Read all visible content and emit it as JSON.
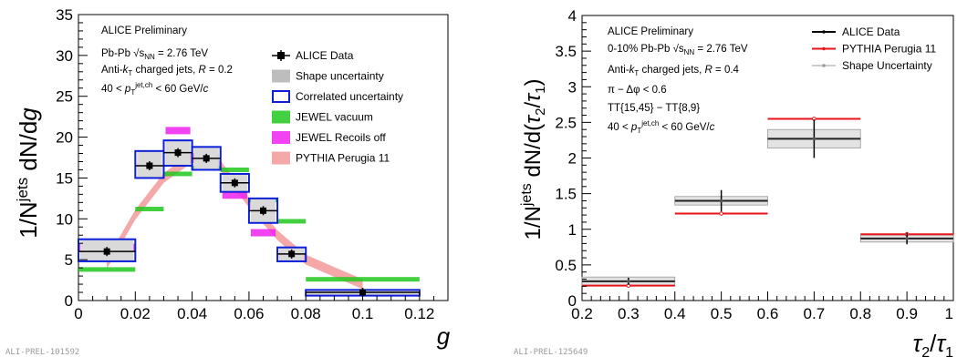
{
  "chart_data": [
    {
      "type": "bar",
      "title": "",
      "xlabel": "g",
      "ylabel": "1/N^jets dN/dg",
      "xlim": [
        0,
        0.13
      ],
      "ylim": [
        0,
        35
      ],
      "xticks": [
        "0",
        "0.02",
        "0.04",
        "0.06",
        "0.08",
        "0.1",
        "0.12"
      ],
      "yticks": [
        "0",
        "5",
        "10",
        "15",
        "20",
        "25",
        "30",
        "35"
      ],
      "annotations": [
        "ALICE Preliminary",
        "Pb-Pb √s_NN = 2.76 TeV",
        "Anti-kT charged jets, R = 0.2",
        "40 < pT^jet,ch < 60 GeV/c"
      ],
      "legend_position": "top-right",
      "legend": [
        "ALICE Data",
        "Shape uncertainty",
        "Correlated uncertainty",
        "JEWEL vacuum",
        "JEWEL Recoils off",
        "PYTHIA Perugia 11"
      ],
      "series": [
        {
          "name": "ALICE Data",
          "bins": [
            [
              0,
              0.02
            ],
            [
              0.02,
              0.03
            ],
            [
              0.03,
              0.04
            ],
            [
              0.04,
              0.05
            ],
            [
              0.05,
              0.06
            ],
            [
              0.06,
              0.07
            ],
            [
              0.07,
              0.08
            ],
            [
              0.08,
              0.12
            ]
          ],
          "x": [
            0.01,
            0.025,
            0.035,
            0.045,
            0.055,
            0.065,
            0.075,
            0.1
          ],
          "y": [
            6.0,
            16.5,
            18.1,
            17.4,
            14.4,
            11.0,
            5.7,
            1.0
          ]
        },
        {
          "name": "Correlated uncertainty",
          "low": [
            4.8,
            15.0,
            16.5,
            16.0,
            13.3,
            9.5,
            4.8,
            0.6
          ],
          "high": [
            7.5,
            18.3,
            19.6,
            18.8,
            15.5,
            12.5,
            6.5,
            1.3
          ]
        },
        {
          "name": "JEWEL vacuum",
          "x": [
            0.01,
            0.025,
            0.035,
            0.045,
            0.055,
            0.065,
            0.075,
            0.1
          ],
          "y": [
            3.8,
            11.2,
            15.5,
            16.2,
            16.0,
            12.3,
            9.7,
            2.6
          ]
        },
        {
          "name": "JEWEL Recoils off",
          "x": [
            0.01,
            0.025,
            0.035,
            0.045,
            0.055,
            0.065,
            0.075
          ],
          "y": [
            6.5,
            16.5,
            20.8,
            17.5,
            12.9,
            8.3,
            5.5
          ]
        },
        {
          "name": "PYTHIA Perugia 11",
          "x": [
            0.01,
            0.02,
            0.03,
            0.04,
            0.05,
            0.06,
            0.07,
            0.08,
            0.1
          ],
          "y": [
            4.5,
            10.5,
            15.0,
            17.5,
            16.5,
            12.0,
            8.0,
            5.0,
            2.0
          ]
        }
      ],
      "tag": "ALI-PREL-101592"
    },
    {
      "type": "bar",
      "title": "",
      "xlabel": "τ2/τ1",
      "ylabel": "1/N^jets dN/d(τ2/τ1)",
      "xlim": [
        0.2,
        1.0
      ],
      "ylim": [
        0,
        4
      ],
      "xticks": [
        "0.2",
        "0.3",
        "0.4",
        "0.5",
        "0.6",
        "0.7",
        "0.8",
        "0.9",
        "1"
      ],
      "yticks": [
        "0",
        "0.5",
        "1",
        "1.5",
        "2",
        "2.5",
        "3",
        "3.5",
        "4"
      ],
      "annotations": [
        "ALICE Preliminary",
        "0-10% Pb-Pb √s_NN = 2.76 TeV",
        "Anti-kT charged jets, R = 0.4",
        "π − Δφ < 0.6",
        "TT{15,45} − TT{8,9}",
        "40 < pT^jet,ch < 60 GeV/c"
      ],
      "legend_position": "top-right",
      "legend": [
        "ALICE Data",
        "PYTHIA Perugia 11",
        "Shape Uncertainty"
      ],
      "series": [
        {
          "name": "ALICE Data",
          "bins": [
            [
              0.2,
              0.4
            ],
            [
              0.4,
              0.6
            ],
            [
              0.6,
              0.8
            ],
            [
              0.8,
              1.0
            ]
          ],
          "x": [
            0.3,
            0.5,
            0.7,
            0.9
          ],
          "y": [
            0.27,
            1.4,
            2.27,
            0.87
          ],
          "stat_err": [
            0.05,
            0.15,
            0.27,
            0.08
          ],
          "shape_unc": [
            0.06,
            0.06,
            0.13,
            0.05
          ]
        },
        {
          "name": "PYTHIA Perugia 11",
          "bins": [
            [
              0.2,
              0.4
            ],
            [
              0.4,
              0.6
            ],
            [
              0.6,
              0.8
            ],
            [
              0.8,
              1.0
            ]
          ],
          "x": [
            0.3,
            0.5,
            0.7,
            0.9
          ],
          "y": [
            0.21,
            1.22,
            2.55,
            0.93
          ]
        }
      ],
      "tag": "ALI-PREL-125649"
    }
  ],
  "colors": {
    "data": "#000000",
    "pythia_red": "#e8141c",
    "pythia_band": "#f4a8a8",
    "shape_gray": "#bdbdbd",
    "correlated_blue": "#0b1fd9",
    "jewel_vac": "#22c81e",
    "jewel_recoil": "#ee22ee"
  }
}
